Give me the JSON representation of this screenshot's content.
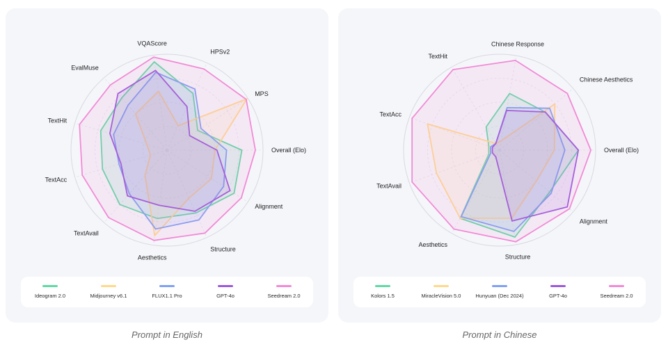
{
  "colors": {
    "green": "#5fd9a3",
    "yellow": "#ffd98c",
    "blue": "#7ea1f2",
    "purple": "#9b59d9",
    "pink": "#f28ad6"
  },
  "chart_data": [
    {
      "type": "radar",
      "caption": "Prompt in English",
      "axes": [
        "Overall (Elo)",
        "MPS",
        "HPSv2",
        "VQAScore",
        "EvalMuse",
        "TextHit",
        "TextAcc",
        "TextAvail",
        "Aesthetics",
        "Structure",
        "Alignment"
      ],
      "series": [
        {
          "name": "Ideogram 2.0",
          "color": "#5fd9a3",
          "values": [
            0.78,
            0.38,
            0.65,
            0.93,
            0.72,
            0.72,
            0.7,
            0.75,
            0.72,
            0.72,
            0.83
          ]
        },
        {
          "name": "Midjourney v6.1",
          "color": "#ffd98c",
          "values": [
            0.5,
            0.99,
            0.28,
            0.62,
            0.5,
            0.22,
            0.18,
            0.35,
            0.9,
            0.55,
            0.55
          ]
        },
        {
          "name": "FLUX1.1 Pro",
          "color": "#7ea1f2",
          "values": [
            0.62,
            0.42,
            0.7,
            0.82,
            0.62,
            0.58,
            0.52,
            0.6,
            0.83,
            0.8,
            0.7
          ]
        },
        {
          "name": "GPT-4o",
          "color": "#9b59d9",
          "values": [
            0.52,
            0.28,
            0.5,
            0.84,
            0.78,
            0.62,
            0.5,
            0.63,
            0.58,
            0.7,
            0.78
          ]
        },
        {
          "name": "Seedream 2.0",
          "color": "#f28ad6",
          "values": [
            0.92,
            0.98,
            0.93,
            0.98,
            0.9,
            0.95,
            0.92,
            0.93,
            0.95,
            0.95,
            0.92
          ]
        }
      ]
    },
    {
      "type": "radar",
      "caption": "Prompt in Chinese",
      "axes": [
        "Overall (Elo)",
        "Chinese Aesthetics",
        "Chinese Response",
        "TextHit",
        "TextAcc",
        "TextAvail",
        "Aesthetics",
        "Structure",
        "Alignment"
      ],
      "series": [
        {
          "name": "Kolors 1.5",
          "color": "#5fd9a3",
          "values": [
            0.82,
            0.62,
            0.6,
            0.28,
            0.12,
            0.12,
            0.82,
            0.92,
            0.68
          ]
        },
        {
          "name": "MiracleVision 5.0",
          "color": "#ffd98c",
          "values": [
            0.57,
            0.75,
            0.1,
            0.08,
            0.8,
            0.7,
            0.82,
            0.72,
            0.5
          ]
        },
        {
          "name": "Hunyuan (Dec 2024)",
          "color": "#7ea1f2",
          "values": [
            0.68,
            0.68,
            0.45,
            0.08,
            0.1,
            0.1,
            0.8,
            0.86,
            0.7
          ]
        },
        {
          "name": "GPT-4o",
          "color": "#9b59d9",
          "values": [
            0.82,
            0.62,
            0.42,
            0.08,
            0.08,
            0.08,
            0.08,
            0.75,
            0.92
          ]
        },
        {
          "name": "Seedream 2.0",
          "color": "#f28ad6",
          "values": [
            0.95,
            0.92,
            0.95,
            0.97,
            0.97,
            0.97,
            0.95,
            0.97,
            0.95
          ]
        }
      ]
    }
  ]
}
